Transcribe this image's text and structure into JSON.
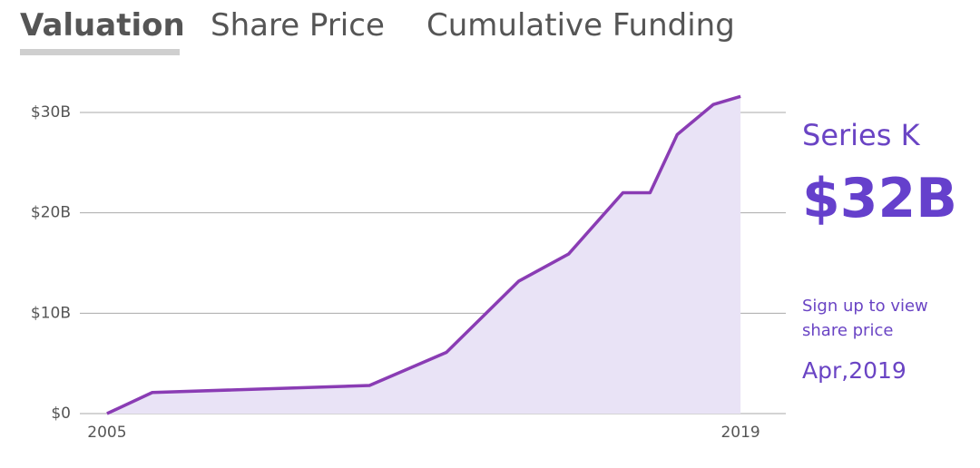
{
  "tabs": [
    "Valuation",
    "Share Price",
    "Cumulative Funding"
  ],
  "chart_data": {
    "type": "area",
    "x": [
      2005.0,
      2006.0,
      2010.8,
      2012.5,
      2014.1,
      2015.2,
      2016.4,
      2017.0,
      2017.6,
      2018.4,
      2019.0
    ],
    "series": [
      {
        "values": [
          0,
          2.1,
          2.8,
          6.1,
          13.2,
          15.9,
          22,
          22,
          27.8,
          30.8,
          31.6
        ],
        "color": "#8a3cb4",
        "fill": "#e9e3f6"
      }
    ],
    "xlim": [
      2004.4,
      2020.0
    ],
    "xticks": [
      2005,
      2019
    ],
    "ylim": [
      0,
      30
    ],
    "yticks": [
      {
        "value": 0,
        "label": "$0"
      },
      {
        "value": 10,
        "label": "$10B"
      },
      {
        "value": 20,
        "label": "$20B"
      },
      {
        "value": 30,
        "label": "$30B"
      }
    ],
    "grid": true
  },
  "latest": {
    "round": "Series K",
    "valuation": "$32B",
    "note": "Sign up to view share price",
    "date": "Apr,2019"
  }
}
